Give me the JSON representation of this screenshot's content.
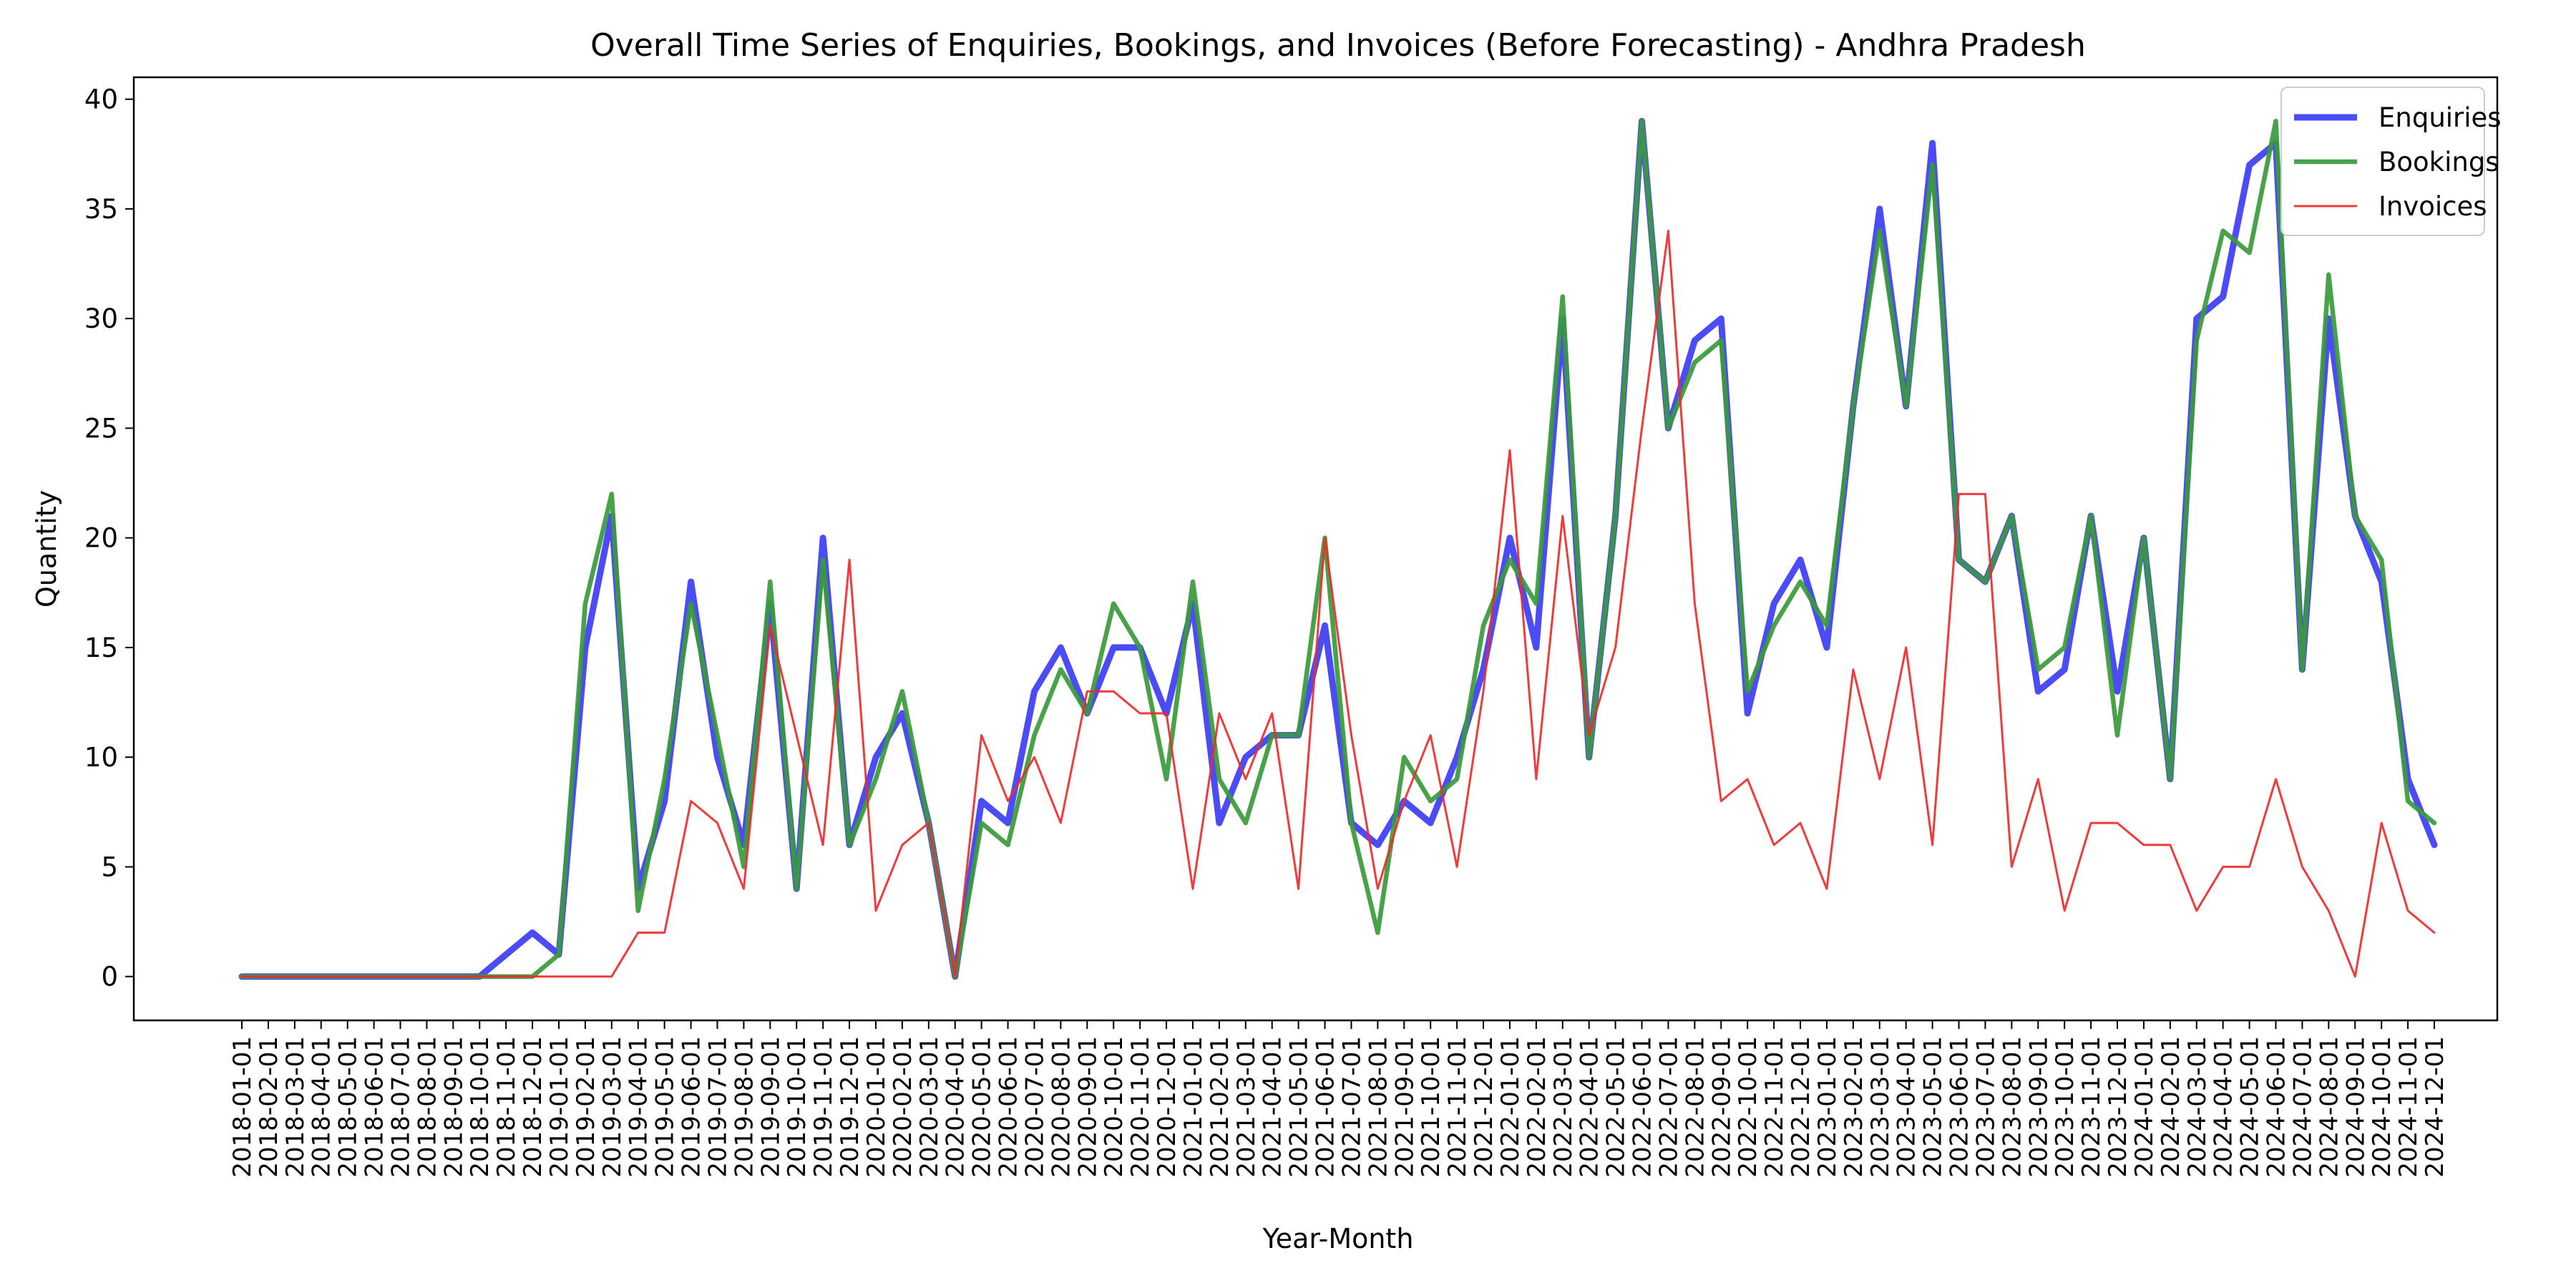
{
  "chart_data": {
    "type": "line",
    "title": "Overall Time Series of Enquiries, Bookings, and Invoices (Before Forecasting) - Andhra Pradesh",
    "xlabel": "Year-Month",
    "ylabel": "Quantity",
    "ylim": [
      -2,
      41
    ],
    "yticks": [
      0,
      5,
      10,
      15,
      20,
      25,
      30,
      35,
      40
    ],
    "grid": false,
    "legend_position": "top-right",
    "x": [
      "2018-01-01",
      "2018-02-01",
      "2018-03-01",
      "2018-04-01",
      "2018-05-01",
      "2018-06-01",
      "2018-07-01",
      "2018-08-01",
      "2018-09-01",
      "2018-10-01",
      "2018-11-01",
      "2018-12-01",
      "2019-01-01",
      "2019-02-01",
      "2019-03-01",
      "2019-04-01",
      "2019-05-01",
      "2019-06-01",
      "2019-07-01",
      "2019-08-01",
      "2019-09-01",
      "2019-10-01",
      "2019-11-01",
      "2019-12-01",
      "2020-01-01",
      "2020-02-01",
      "2020-03-01",
      "2020-04-01",
      "2020-05-01",
      "2020-06-01",
      "2020-07-01",
      "2020-08-01",
      "2020-09-01",
      "2020-10-01",
      "2020-11-01",
      "2020-12-01",
      "2021-01-01",
      "2021-02-01",
      "2021-03-01",
      "2021-04-01",
      "2021-05-01",
      "2021-06-01",
      "2021-07-01",
      "2021-08-01",
      "2021-09-01",
      "2021-10-01",
      "2021-11-01",
      "2021-12-01",
      "2022-01-01",
      "2022-02-01",
      "2022-03-01",
      "2022-04-01",
      "2022-05-01",
      "2022-06-01",
      "2022-07-01",
      "2022-08-01",
      "2022-09-01",
      "2022-10-01",
      "2022-11-01",
      "2022-12-01",
      "2023-01-01",
      "2023-02-01",
      "2023-03-01",
      "2023-04-01",
      "2023-05-01",
      "2023-06-01",
      "2023-07-01",
      "2023-08-01",
      "2023-09-01",
      "2023-10-01",
      "2023-11-01",
      "2023-12-01",
      "2024-01-01",
      "2024-02-01",
      "2024-03-01",
      "2024-04-01",
      "2024-05-01",
      "2024-06-01",
      "2024-07-01",
      "2024-08-01",
      "2024-09-01",
      "2024-10-01",
      "2024-11-01",
      "2024-12-01"
    ],
    "series": [
      {
        "name": "Enquiries",
        "color": "#3d3df5",
        "values": [
          0,
          0,
          0,
          0,
          0,
          0,
          0,
          0,
          0,
          0,
          1,
          2,
          1,
          15,
          21,
          4,
          8,
          18,
          10,
          6,
          17,
          4,
          20,
          6,
          10,
          12,
          7,
          0,
          8,
          7,
          13,
          15,
          12,
          15,
          15,
          12,
          17,
          7,
          10,
          11,
          11,
          16,
          7,
          6,
          8,
          7,
          10,
          14,
          20,
          15,
          30,
          10,
          21,
          39,
          25,
          29,
          30,
          12,
          17,
          19,
          15,
          26,
          35,
          26,
          38,
          19,
          18,
          21,
          13,
          14,
          21,
          13,
          20,
          9,
          30,
          31,
          37,
          38,
          14,
          30,
          21,
          18,
          9,
          6
        ]
      },
      {
        "name": "Bookings",
        "color": "#3a9a3a",
        "values": [
          0,
          0,
          0,
          0,
          0,
          0,
          0,
          0,
          0,
          0,
          0,
          0,
          1,
          17,
          22,
          3,
          9,
          17,
          11,
          5,
          18,
          4,
          19,
          6,
          9,
          13,
          7,
          0,
          7,
          6,
          11,
          14,
          12,
          17,
          15,
          9,
          18,
          9,
          7,
          11,
          11,
          20,
          7,
          2,
          10,
          8,
          9,
          16,
          19,
          17,
          31,
          10,
          21,
          39,
          25,
          28,
          29,
          13,
          16,
          18,
          16,
          26,
          34,
          26,
          37,
          19,
          18,
          21,
          14,
          15,
          21,
          11,
          20,
          9,
          29,
          34,
          33,
          39,
          14,
          32,
          21,
          19,
          8,
          7
        ]
      },
      {
        "name": "Invoices",
        "color": "#ee2a2a",
        "values": [
          0,
          0,
          0,
          0,
          0,
          0,
          0,
          0,
          0,
          0,
          0,
          0,
          0,
          0,
          0,
          2,
          2,
          8,
          7,
          4,
          16,
          11,
          6,
          19,
          3,
          6,
          7,
          0,
          11,
          8,
          10,
          7,
          13,
          13,
          12,
          12,
          4,
          12,
          9,
          12,
          4,
          20,
          11,
          4,
          8,
          11,
          5,
          13,
          24,
          9,
          21,
          11,
          15,
          25,
          34,
          17,
          8,
          9,
          6,
          7,
          4,
          14,
          9,
          15,
          6,
          22,
          22,
          5,
          9,
          3,
          7,
          7,
          6,
          6,
          3,
          5,
          5,
          9,
          5,
          3,
          0,
          7,
          3,
          2
        ]
      }
    ]
  }
}
